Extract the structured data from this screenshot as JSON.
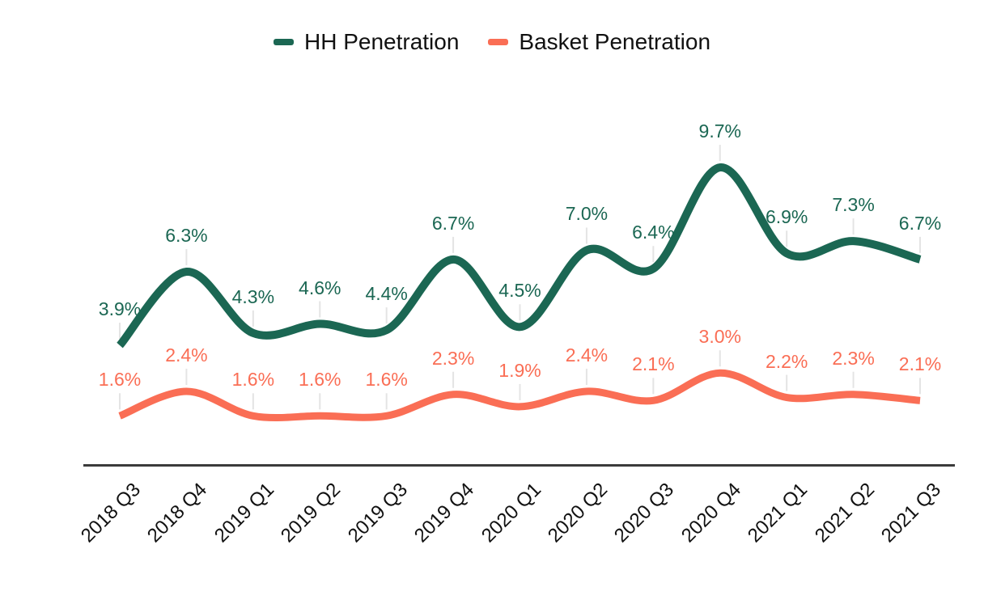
{
  "legend": {
    "items": [
      {
        "label": "HH Penetration",
        "color": "#1b6753"
      },
      {
        "label": "Basket Penetration",
        "color": "#fa6e55"
      }
    ]
  },
  "chart_data": {
    "type": "line",
    "line_shape": "spline",
    "title": "",
    "xlabel": "",
    "ylabel": "",
    "grid": false,
    "legend_position": "top-center",
    "value_suffix": "%",
    "ylim": [
      0,
      12
    ],
    "categories": [
      "2018 Q3",
      "2018 Q4",
      "2019 Q1",
      "2019 Q2",
      "2019 Q3",
      "2019 Q4",
      "2020 Q1",
      "2020 Q2",
      "2020 Q3",
      "2020 Q4",
      "2021 Q1",
      "2021 Q2",
      "2021 Q3"
    ],
    "series": [
      {
        "name": "HH Penetration",
        "color": "#1b6753",
        "values": [
          3.9,
          6.3,
          4.3,
          4.6,
          4.4,
          6.7,
          4.5,
          7.0,
          6.4,
          9.7,
          6.9,
          7.3,
          6.7
        ],
        "labels": [
          "3.9%",
          "6.3%",
          "4.3%",
          "4.6%",
          "4.4%",
          "6.7%",
          "4.5%",
          "7.0%",
          "6.4%",
          "9.7%",
          "6.9%",
          "7.3%",
          "6.7%"
        ]
      },
      {
        "name": "Basket Penetration",
        "color": "#fa6e55",
        "values": [
          1.6,
          2.4,
          1.6,
          1.6,
          1.6,
          2.3,
          1.9,
          2.4,
          2.1,
          3.0,
          2.2,
          2.3,
          2.1
        ],
        "labels": [
          "1.6%",
          "2.4%",
          "1.6%",
          "1.6%",
          "1.6%",
          "2.3%",
          "1.9%",
          "2.4%",
          "2.1%",
          "3.0%",
          "2.2%",
          "2.3%",
          "2.1%"
        ]
      }
    ]
  },
  "colors": {
    "axis_line": "#3b3b3b",
    "leader_line": "#e4e4e4",
    "background": "#ffffff",
    "tick_text": "#111111"
  }
}
